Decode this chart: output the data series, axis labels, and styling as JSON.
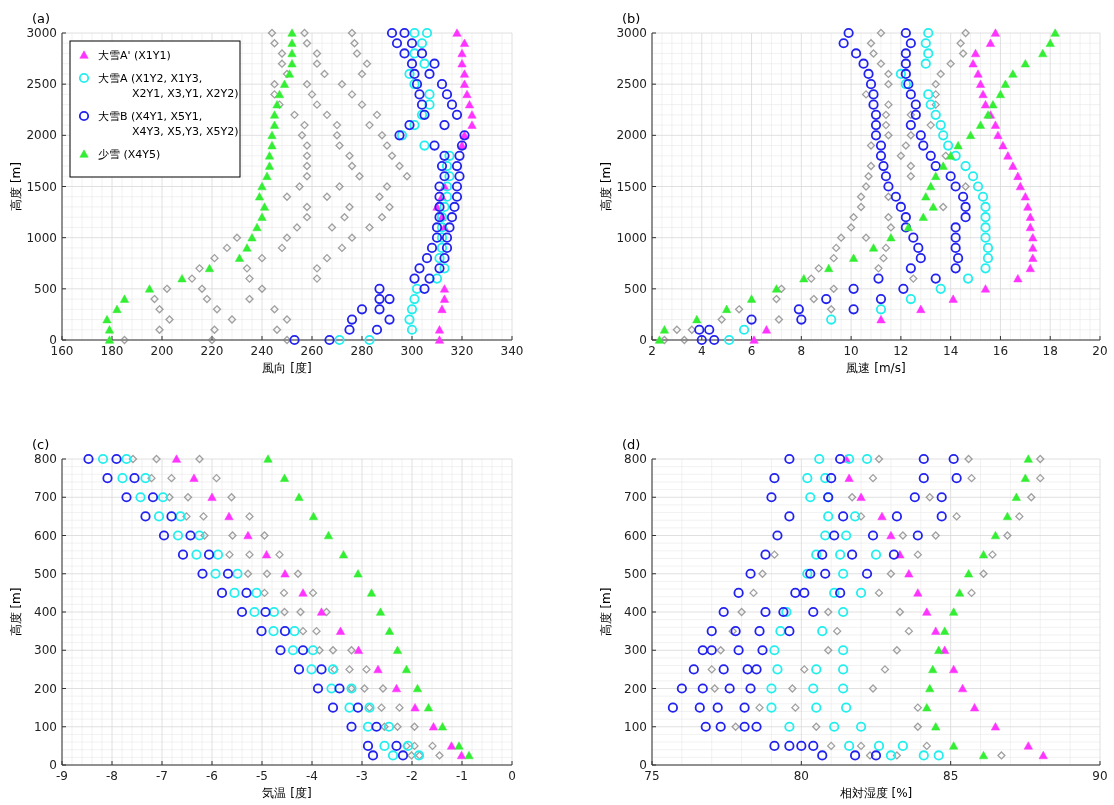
{
  "chart_data": [
    {
      "type": "scatter",
      "title": "(a)",
      "xlabel": "風向 [度]",
      "ylabel": "高度 [m]",
      "xlim": [
        160,
        340
      ],
      "xticks": [
        160,
        180,
        200,
        220,
        240,
        260,
        280,
        300,
        320,
        340
      ],
      "ylim": [
        0,
        3000
      ],
      "yticks": [
        0,
        500,
        1000,
        1500,
        2000,
        2500,
        3000
      ],
      "grid": true,
      "legend": "top left",
      "series": [
        {
          "color": "#808080",
          "marker": "diamond",
          "x": [
            244,
            257,
            276,
            245,
            258,
            277,
            248,
            262,
            278,
            248,
            262,
            282,
            250,
            265,
            280,
            245,
            258,
            272,
            245,
            260,
            276,
            247,
            262,
            280,
            253,
            266,
            286,
            257,
            270,
            283,
            256,
            270,
            288,
            258,
            271,
            290,
            258,
            275,
            292,
            258,
            276,
            295,
            258,
            279,
            298,
            255,
            271,
            290,
            250,
            266,
            287,
            258,
            275,
            291,
            258,
            273,
            288,
            254,
            268,
            283,
            230,
            250,
            276,
            226,
            248,
            272,
            221,
            240,
            266,
            215,
            234,
            262,
            212,
            235,
            262,
            202,
            216,
            240,
            197,
            218,
            235,
            199,
            222,
            245,
            203,
            228,
            250,
            199,
            221,
            246,
            185,
            220,
            250
          ],
          "values": [
            3000,
            3000,
            3000,
            2900,
            2900,
            2900,
            2800,
            2800,
            2800,
            2700,
            2700,
            2700,
            2600,
            2600,
            2600,
            2500,
            2500,
            2500,
            2400,
            2400,
            2400,
            2300,
            2300,
            2300,
            2200,
            2200,
            2200,
            2100,
            2100,
            2100,
            2000,
            2000,
            2000,
            1900,
            1900,
            1900,
            1800,
            1800,
            1800,
            1700,
            1700,
            1700,
            1600,
            1600,
            1600,
            1500,
            1500,
            1500,
            1400,
            1400,
            1400,
            1300,
            1300,
            1300,
            1200,
            1200,
            1200,
            1100,
            1100,
            1100,
            1000,
            1000,
            1000,
            900,
            900,
            900,
            800,
            800,
            800,
            700,
            700,
            700,
            600,
            600,
            600,
            500,
            500,
            500,
            400,
            400,
            400,
            300,
            300,
            300,
            200,
            200,
            200,
            100,
            100,
            100,
            0,
            0,
            0
          ]
        },
        {
          "name": "大雪A' (X1Y1)",
          "color": "#ff33ff",
          "marker": "triangle",
          "x": [
            318,
            321,
            320,
            320,
            321,
            321,
            322,
            323,
            324,
            324,
            321,
            320,
            313,
            312,
            310,
            312,
            313,
            313,
            313,
            312,
            311,
            311
          ],
          "values": [
            3000,
            2900,
            2800,
            2700,
            2600,
            2500,
            2400,
            2300,
            2200,
            2100,
            2000,
            1900,
            1500,
            1400,
            1300,
            1200,
            1100,
            500,
            400,
            300,
            100,
            0
          ]
        },
        {
          "name": "大雪A (X1Y2, X1Y3, X2Y1, X3,Y1, X2Y2)",
          "color": "#22eeee",
          "marker": "circle",
          "x": [
            301,
            306,
            304,
            301,
            305,
            299,
            301,
            307,
            307,
            304,
            301,
            296,
            305,
            315,
            314,
            315,
            314,
            314,
            313,
            312,
            312,
            312,
            312,
            311,
            313,
            310,
            302,
            301,
            300,
            299,
            300,
            271,
            283
          ],
          "values": [
            3000,
            3000,
            2900,
            2800,
            2700,
            2600,
            2500,
            2400,
            2300,
            2200,
            2100,
            2000,
            1900,
            1800,
            1700,
            1600,
            1500,
            1400,
            1300,
            1200,
            1100,
            1000,
            900,
            800,
            700,
            600,
            500,
            400,
            300,
            200,
            100,
            0,
            0
          ]
        },
        {
          "name": "大雪B (X4Y1, X5Y1, X4Y3, X5,Y3, X5Y2)",
          "color": "#2222ee",
          "marker": "circle",
          "x": [
            292,
            297,
            294,
            300,
            297,
            304,
            300,
            309,
            301,
            307,
            302,
            312,
            303,
            314,
            304,
            316,
            305,
            318,
            299,
            313,
            295,
            321,
            309,
            320,
            313,
            319,
            312,
            318,
            313,
            319,
            311,
            318,
            311,
            318,
            311,
            317,
            311,
            316,
            310,
            315,
            310,
            314,
            308,
            314,
            306,
            313,
            303,
            311,
            301,
            307,
            287,
            305,
            287,
            291,
            280,
            287,
            276,
            291,
            275,
            286,
            253,
            267
          ],
          "values": [
            3000,
            3000,
            2900,
            2900,
            2800,
            2800,
            2700,
            2700,
            2600,
            2600,
            2500,
            2500,
            2400,
            2400,
            2300,
            2300,
            2200,
            2200,
            2100,
            2100,
            2000,
            2000,
            1900,
            1900,
            1800,
            1800,
            1700,
            1700,
            1600,
            1600,
            1500,
            1500,
            1400,
            1400,
            1300,
            1300,
            1200,
            1200,
            1100,
            1100,
            1000,
            1000,
            900,
            900,
            800,
            800,
            700,
            700,
            600,
            600,
            500,
            500,
            400,
            400,
            300,
            300,
            200,
            200,
            100,
            100,
            0,
            0
          ]
        },
        {
          "name": "少雪 (X4Y5)",
          "color": "#33ee33",
          "marker": "triangle",
          "x": [
            252,
            252,
            252,
            252,
            251,
            249,
            247,
            246,
            245,
            245,
            244,
            244,
            243,
            243,
            242,
            240,
            239,
            241,
            240,
            238,
            236,
            234,
            231,
            219,
            208,
            195,
            185,
            182,
            178,
            179,
            179
          ],
          "values": [
            3000,
            2900,
            2800,
            2700,
            2600,
            2500,
            2400,
            2300,
            2200,
            2100,
            2000,
            1900,
            1800,
            1700,
            1600,
            1500,
            1400,
            1300,
            1200,
            1100,
            1000,
            900,
            800,
            700,
            600,
            500,
            400,
            300,
            200,
            100,
            0
          ]
        }
      ]
    },
    {
      "type": "scatter",
      "title": "(b)",
      "xlabel": "風速 [m/s]",
      "ylabel": "高度 [m]",
      "xlim": [
        2,
        20
      ],
      "xticks": [
        2,
        4,
        6,
        8,
        10,
        12,
        14,
        16,
        18,
        20
      ],
      "ylim": [
        0,
        3000
      ],
      "yticks": [
        0,
        500,
        1000,
        1500,
        2000,
        2500,
        3000
      ],
      "grid": true,
      "series": [
        {
          "color": "#808080",
          "marker": "diamond",
          "x": [
            11.2,
            14.6,
            10.8,
            14.4,
            10.9,
            14.5,
            11.2,
            14.0,
            11.5,
            13.6,
            11.5,
            13.4,
            10.6,
            13.4,
            11.5,
            13.4,
            11.4,
            12.4,
            11.4,
            13.2,
            11.5,
            12.4,
            10.8,
            12.2,
            12.0,
            13.8,
            10.8,
            12.4,
            10.7,
            12.4,
            10.6,
            14.6,
            10.4,
            11.5,
            10.4,
            13.7,
            10.1,
            11.5,
            10.0,
            11.6,
            9.6,
            10.6,
            9.4,
            11.4,
            9.3,
            11.3,
            8.7,
            11.1,
            8.4,
            12.5,
            7.2,
            9.3,
            7.0,
            8.5,
            5.5,
            9.2,
            4.8,
            7.1,
            3.0,
            3.6,
            2.5,
            3.3
          ],
          "values": [
            3000,
            3000,
            2900,
            2900,
            2800,
            2800,
            2700,
            2700,
            2600,
            2600,
            2500,
            2500,
            2400,
            2400,
            2300,
            2300,
            2200,
            2200,
            2100,
            2100,
            2000,
            2000,
            1900,
            1900,
            1800,
            1800,
            1700,
            1700,
            1600,
            1600,
            1500,
            1500,
            1400,
            1400,
            1300,
            1300,
            1200,
            1200,
            1100,
            1100,
            1000,
            1000,
            900,
            900,
            800,
            800,
            700,
            700,
            600,
            600,
            500,
            500,
            400,
            400,
            300,
            300,
            200,
            200,
            100,
            100,
            0,
            0
          ]
        },
        {
          "color": "#ff33ff",
          "marker": "triangle",
          "x": [
            15.8,
            15.6,
            15.0,
            14.9,
            15.1,
            15.2,
            15.3,
            15.4,
            15.6,
            15.8,
            15.9,
            16.1,
            16.3,
            16.5,
            16.7,
            16.8,
            17.0,
            17.1,
            17.2,
            17.2,
            17.3,
            17.3,
            17.3,
            17.2,
            16.7,
            15.4,
            14.1,
            12.8,
            11.2,
            6.6,
            6.1
          ],
          "values": [
            3000,
            2900,
            2800,
            2700,
            2600,
            2500,
            2400,
            2300,
            2200,
            2100,
            2000,
            1900,
            1800,
            1700,
            1600,
            1500,
            1400,
            1300,
            1200,
            1100,
            1000,
            900,
            800,
            700,
            600,
            500,
            400,
            300,
            200,
            100,
            0
          ]
        },
        {
          "color": "#22eeee",
          "marker": "circle",
          "x": [
            13.1,
            13.0,
            13.1,
            13.0,
            12.0,
            12.2,
            13.1,
            13.2,
            13.4,
            13.6,
            13.7,
            13.9,
            14.2,
            14.6,
            14.9,
            15.1,
            15.3,
            15.4,
            15.4,
            15.4,
            15.4,
            15.5,
            15.5,
            15.4,
            14.7,
            13.6,
            12.4,
            11.2,
            9.2,
            5.7,
            5.1
          ],
          "values": [
            3000,
            2900,
            2800,
            2700,
            2600,
            2500,
            2400,
            2300,
            2200,
            2100,
            2000,
            1900,
            1800,
            1700,
            1600,
            1500,
            1400,
            1300,
            1200,
            1100,
            1000,
            900,
            800,
            700,
            600,
            500,
            400,
            300,
            200,
            100,
            0
          ]
        },
        {
          "color": "#2222ee",
          "marker": "circle",
          "x": [
            9.9,
            12.2,
            9.7,
            12.4,
            10.2,
            12.2,
            10.5,
            12.2,
            10.7,
            12.2,
            10.8,
            12.3,
            10.9,
            12.4,
            10.9,
            12.6,
            11.0,
            12.6,
            11.0,
            12.4,
            11.0,
            12.8,
            11.2,
            12.9,
            11.2,
            13.2,
            11.3,
            13.4,
            11.4,
            14.0,
            11.5,
            14.2,
            11.8,
            14.5,
            12.0,
            14.6,
            12.2,
            14.6,
            12.2,
            14.2,
            12.5,
            14.2,
            12.7,
            14.2,
            12.8,
            14.3,
            12.4,
            14.2,
            11.1,
            13.4,
            10.1,
            12.1,
            9.0,
            11.2,
            7.9,
            10.1,
            6.0,
            8.0,
            3.9,
            4.3,
            4.0,
            4.5
          ],
          "values": [
            3000,
            3000,
            2900,
            2900,
            2800,
            2800,
            2700,
            2700,
            2600,
            2600,
            2500,
            2500,
            2400,
            2400,
            2300,
            2300,
            2200,
            2200,
            2100,
            2100,
            2000,
            2000,
            1900,
            1900,
            1800,
            1800,
            1700,
            1700,
            1600,
            1600,
            1500,
            1500,
            1400,
            1400,
            1300,
            1300,
            1200,
            1200,
            1100,
            1100,
            1000,
            1000,
            900,
            900,
            800,
            800,
            700,
            700,
            600,
            600,
            500,
            500,
            400,
            400,
            300,
            300,
            200,
            200,
            100,
            100,
            0,
            0
          ]
        },
        {
          "color": "#33ee33",
          "marker": "triangle",
          "x": [
            18.2,
            18.0,
            17.7,
            17.0,
            16.5,
            16.2,
            16.0,
            15.7,
            15.5,
            15.2,
            14.8,
            14.3,
            14.0,
            13.7,
            13.4,
            13.2,
            13.0,
            13.3,
            12.9,
            12.3,
            11.6,
            10.9,
            10.1,
            9.1,
            8.1,
            7.0,
            6.0,
            5.0,
            3.8,
            2.5,
            2.3
          ],
          "values": [
            3000,
            2900,
            2800,
            2700,
            2600,
            2500,
            2400,
            2300,
            2200,
            2100,
            2000,
            1900,
            1800,
            1700,
            1600,
            1500,
            1400,
            1300,
            1200,
            1100,
            1000,
            900,
            800,
            700,
            600,
            500,
            400,
            300,
            200,
            100,
            0
          ]
        }
      ]
    },
    {
      "type": "scatter",
      "title": "(c)",
      "xlabel": "気温 [度]",
      "ylabel": "高度 [m]",
      "xlim": [
        -9,
        0
      ],
      "xticks": [
        -9,
        -8,
        -7,
        -6,
        -5,
        -4,
        -3,
        -2,
        -1,
        0
      ],
      "ylim": [
        0,
        800
      ],
      "yticks": [
        0,
        100,
        200,
        300,
        400,
        500,
        600,
        700,
        800
      ],
      "grid": true,
      "series": [
        {
          "color": "#808080",
          "marker": "diamond",
          "x": [
            -7.58,
            -7.11,
            -6.25,
            -7.21,
            -6.81,
            -5.91,
            -6.85,
            -6.48,
            -5.61,
            -6.51,
            -6.17,
            -5.25,
            -6.15,
            -5.59,
            -4.95,
            -5.65,
            -5.25,
            -4.65,
            -5.28,
            -4.9,
            -4.28,
            -4.95,
            -4.56,
            -3.98,
            -4.55,
            -4.23,
            -3.71,
            -4.18,
            -3.91,
            null,
            -3.85,
            -3.58,
            -3.21,
            -3.55,
            -3.25,
            -2.91,
            -3.21,
            -2.95,
            -2.58,
            -2.85,
            -2.61,
            -2.25,
            -2.55,
            -2.29,
            -1.95,
            -2.11,
            -1.95,
            -1.59,
            -2.01,
            -1.85,
            -1.45
          ],
          "values": [
            800,
            800,
            800,
            750,
            750,
            750,
            700,
            700,
            700,
            650,
            650,
            650,
            600,
            600,
            600,
            550,
            550,
            550,
            500,
            500,
            500,
            450,
            450,
            450,
            400,
            400,
            400,
            350,
            350,
            null,
            300,
            300,
            300,
            250,
            250,
            250,
            200,
            200,
            200,
            150,
            150,
            150,
            100,
            100,
            100,
            50,
            50,
            50,
            25,
            25,
            25
          ]
        },
        {
          "color": "#ff33ff",
          "marker": "triangle",
          "x": [
            -6.71,
            -6.36,
            -6.0,
            -5.66,
            -5.28,
            -4.91,
            -4.54,
            -4.18,
            -3.81,
            -3.43,
            -3.07,
            -2.68,
            -2.31,
            -1.94,
            -1.57,
            -1.21,
            -1.01
          ],
          "values": [
            800,
            750,
            700,
            650,
            600,
            550,
            500,
            450,
            400,
            350,
            300,
            250,
            200,
            150,
            100,
            50,
            25
          ]
        },
        {
          "color": "#22eeee",
          "marker": "circle",
          "x": [
            -8.18,
            -7.71,
            -7.79,
            -7.33,
            -7.43,
            -6.98,
            -7.06,
            -6.63,
            -6.68,
            -6.25,
            -6.31,
            -5.88,
            -5.93,
            -5.49,
            -5.55,
            -5.11,
            -5.15,
            -4.76,
            -4.77,
            -4.35,
            -4.38,
            -3.98,
            -4.01,
            -3.58,
            -3.61,
            -3.21,
            -3.25,
            -2.85,
            -2.88,
            -2.46,
            -2.55,
            -2.08,
            -2.38,
            -1.86
          ],
          "values": [
            800,
            800,
            750,
            750,
            700,
            700,
            650,
            650,
            600,
            600,
            550,
            550,
            500,
            500,
            450,
            450,
            400,
            400,
            350,
            350,
            300,
            300,
            250,
            250,
            200,
            200,
            150,
            150,
            100,
            100,
            50,
            50,
            25,
            25
          ]
        },
        {
          "color": "#2222ee",
          "marker": "circle",
          "x": [
            -8.47,
            -7.91,
            -8.09,
            -7.55,
            -7.71,
            -7.18,
            -7.33,
            -6.81,
            -6.96,
            -6.43,
            -6.58,
            -6.06,
            -6.19,
            -5.68,
            -5.8,
            -5.31,
            -5.4,
            -4.93,
            -5.01,
            -4.54,
            -4.63,
            -4.18,
            -4.26,
            -3.81,
            -3.88,
            -3.45,
            -3.58,
            -3.08,
            -3.21,
            -2.71,
            -2.88,
            -2.31,
            -2.78,
            -2.18
          ],
          "values": [
            800,
            800,
            750,
            750,
            700,
            700,
            650,
            650,
            600,
            600,
            550,
            550,
            500,
            500,
            450,
            450,
            400,
            400,
            350,
            350,
            300,
            300,
            250,
            250,
            200,
            200,
            150,
            150,
            100,
            100,
            50,
            50,
            25,
            25
          ]
        },
        {
          "color": "#33ee33",
          "marker": "triangle",
          "x": [
            -4.88,
            -4.55,
            -4.26,
            -3.97,
            -3.67,
            -3.37,
            -3.08,
            -2.81,
            -2.63,
            -2.45,
            -2.29,
            -2.11,
            -1.89,
            -1.67,
            -1.39,
            -1.06,
            -0.86
          ],
          "values": [
            800,
            750,
            700,
            650,
            600,
            550,
            500,
            450,
            400,
            350,
            300,
            250,
            200,
            150,
            100,
            50,
            25
          ]
        }
      ]
    },
    {
      "type": "scatter",
      "title": "(d)",
      "xlabel": "相対湿度 [%]",
      "ylabel": "高度 [m]",
      "xlim": [
        75,
        90
      ],
      "xticks": [
        75,
        80,
        85,
        90
      ],
      "ylim": [
        0,
        800
      ],
      "yticks": [
        0,
        100,
        200,
        300,
        400,
        500,
        600,
        700,
        800
      ],
      "grid": true,
      "series": [
        {
          "color": "#808080",
          "marker": "diamond",
          "x": [
            82.6,
            85.6,
            88.0,
            82.4,
            85.7,
            88.0,
            81.7,
            84.3,
            87.7,
            82.0,
            85.2,
            87.3,
            83.4,
            84.5,
            86.9,
            79.1,
            83.9,
            86.4,
            78.7,
            83.0,
            86.1,
            78.4,
            82.6,
            85.7,
            78.0,
            80.9,
            83.3,
            77.7,
            81.2,
            83.6,
            77.3,
            80.9,
            83.2,
            77.0,
            80.1,
            82.8,
            77.1,
            79.7,
            82.4,
            78.6,
            79.8,
            83.9,
            77.8,
            80.5,
            83.9,
            81.0,
            82.0,
            84.2,
            82.3,
            83.2,
            86.7
          ],
          "values": [
            800,
            800,
            800,
            750,
            750,
            750,
            700,
            700,
            700,
            650,
            650,
            650,
            600,
            600,
            600,
            550,
            550,
            550,
            500,
            500,
            500,
            450,
            450,
            450,
            400,
            400,
            400,
            350,
            350,
            350,
            300,
            300,
            300,
            250,
            250,
            250,
            200,
            200,
            200,
            150,
            150,
            150,
            100,
            100,
            100,
            50,
            50,
            50,
            25,
            25,
            25
          ]
        },
        {
          "color": "#ff33ff",
          "marker": "triangle",
          "x": [
            81.5,
            81.6,
            82.0,
            82.7,
            83.0,
            83.3,
            83.6,
            83.9,
            84.2,
            84.5,
            84.8,
            85.1,
            85.4,
            85.8,
            86.5,
            87.6,
            88.1
          ],
          "values": [
            800,
            750,
            700,
            650,
            600,
            550,
            500,
            450,
            400,
            350,
            300,
            250,
            200,
            150,
            100,
            50,
            25
          ]
        },
        {
          "color": "#22eeee",
          "marker": "circle",
          "x": [
            80.6,
            81.6,
            82.2,
            80.2,
            80.8,
            80.3,
            80.9,
            80.9,
            81.8,
            80.8,
            81.5,
            80.5,
            81.3,
            82.5,
            80.2,
            81.4,
            81.1,
            82.0,
            79.5,
            81.4,
            79.3,
            80.7,
            79.1,
            81.4,
            79.2,
            80.5,
            81.4,
            79.0,
            80.4,
            81.4,
            79.0,
            80.5,
            81.5,
            79.6,
            81.1,
            82.0,
            81.6,
            82.6,
            83.4,
            83.0,
            84.1,
            84.6
          ],
          "values": [
            800,
            800,
            800,
            750,
            750,
            700,
            700,
            650,
            650,
            600,
            600,
            550,
            550,
            550,
            500,
            500,
            450,
            450,
            400,
            400,
            350,
            350,
            300,
            300,
            250,
            250,
            250,
            200,
            200,
            200,
            150,
            150,
            150,
            100,
            100,
            100,
            50,
            50,
            50,
            25,
            25,
            25
          ]
        },
        {
          "color": "#2222ee",
          "marker": "circle",
          "x": [
            79.6,
            81.3,
            84.1,
            85.1,
            79.1,
            81.0,
            84.1,
            85.2,
            79.0,
            80.9,
            83.8,
            84.7,
            79.6,
            81.4,
            83.2,
            84.7,
            79.2,
            81.1,
            82.4,
            83.9,
            78.8,
            80.7,
            81.7,
            83.1,
            78.3,
            80.3,
            80.8,
            82.2,
            77.9,
            79.8,
            80.1,
            81.3,
            77.4,
            78.8,
            79.4,
            80.4,
            77.0,
            77.8,
            78.6,
            79.6,
            76.7,
            77.0,
            77.9,
            78.7,
            76.4,
            77.4,
            78.2,
            78.5,
            76.0,
            76.7,
            77.6,
            78.3,
            75.7,
            76.6,
            77.2,
            78.1,
            76.8,
            77.3,
            78.1,
            78.5,
            79.1,
            79.6,
            80.0,
            80.4,
            80.7,
            81.8,
            82.5
          ],
          "values": [
            800,
            800,
            800,
            800,
            750,
            750,
            750,
            750,
            700,
            700,
            700,
            700,
            650,
            650,
            650,
            650,
            600,
            600,
            600,
            600,
            550,
            550,
            550,
            550,
            500,
            500,
            500,
            500,
            450,
            450,
            450,
            450,
            400,
            400,
            400,
            400,
            350,
            350,
            350,
            350,
            300,
            300,
            300,
            300,
            250,
            250,
            250,
            250,
            200,
            200,
            200,
            200,
            150,
            150,
            150,
            150,
            100,
            100,
            100,
            100,
            50,
            50,
            50,
            50,
            25,
            25,
            25
          ]
        },
        {
          "color": "#33ee33",
          "marker": "triangle",
          "x": [
            87.6,
            87.5,
            87.2,
            86.9,
            86.5,
            86.1,
            85.6,
            85.3,
            85.1,
            84.8,
            84.6,
            84.4,
            84.3,
            84.2,
            84.5,
            85.1,
            86.1
          ],
          "values": [
            800,
            750,
            700,
            650,
            600,
            550,
            500,
            450,
            400,
            350,
            300,
            250,
            200,
            150,
            100,
            50,
            25
          ]
        }
      ]
    }
  ]
}
